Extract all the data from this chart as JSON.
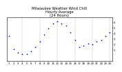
{
  "title": "Milwaukee Weather Wind Chill  Hourly Average  (24 Hours)",
  "title_line1": "Milwaukee Weather Wind Chill",
  "title_line2": "Hourly Average",
  "title_line3": "(24 Hours)",
  "hours": [
    1,
    2,
    3,
    4,
    5,
    6,
    7,
    8,
    9,
    10,
    11,
    12,
    13,
    14,
    15,
    16,
    17,
    18,
    19,
    20,
    21,
    22,
    23,
    24
  ],
  "values": [
    3.5,
    1.2,
    0.5,
    0.2,
    0.3,
    0.8,
    1.5,
    2.5,
    3.8,
    5.0,
    5.8,
    6.2,
    5.9,
    5.5,
    4.2,
    2.8,
    1.5,
    1.8,
    2.2,
    2.0,
    2.5,
    2.8,
    3.5,
    4.2
  ],
  "dot_color": "#0000dd",
  "bg_color": "#ffffff",
  "grid_color": "#aaaaaa",
  "ylim": [
    -1,
    7
  ],
  "ytick_values": [
    1,
    2,
    3,
    4,
    5,
    6
  ],
  "ytick_labels": [
    "1",
    "2",
    "3",
    "4",
    "5",
    "6"
  ],
  "grid_hours": [
    4,
    8,
    12,
    16,
    20,
    24
  ],
  "title_fontsize": 3.8,
  "tick_fontsize": 2.8,
  "marker_size": 1.5
}
